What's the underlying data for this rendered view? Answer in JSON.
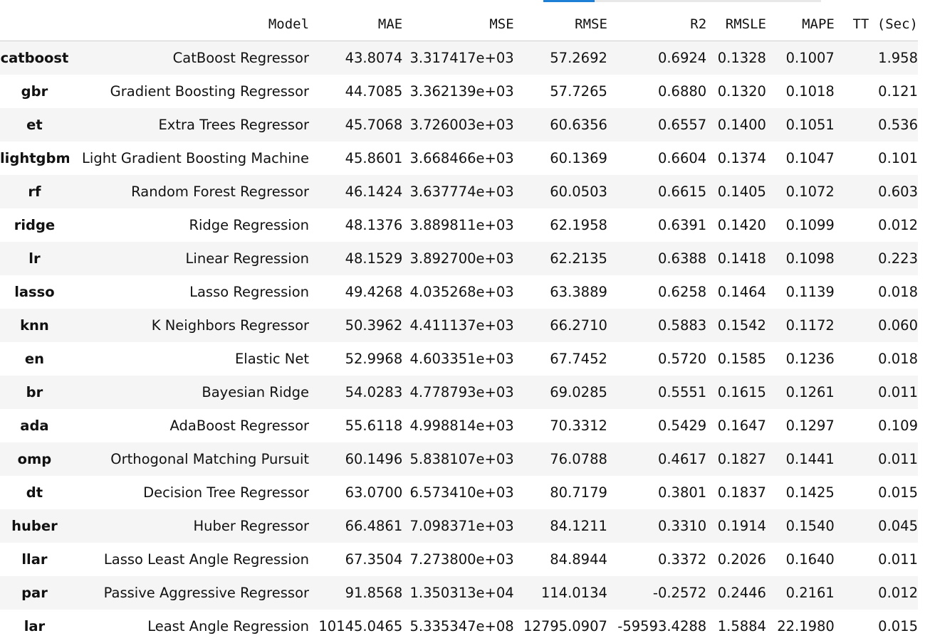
{
  "columns": [
    "",
    "Model",
    "MAE",
    "MSE",
    "RMSE",
    "R2",
    "RMSLE",
    "MAPE",
    "TT (Sec)"
  ],
  "rows": [
    {
      "id": "catboost",
      "model": "CatBoost Regressor",
      "mae": "43.8074",
      "mse": "3.317417e+03",
      "rmse": "57.2692",
      "r2": "0.6924",
      "rmsle": "0.1328",
      "mape": "0.1007",
      "tt": "1.958"
    },
    {
      "id": "gbr",
      "model": "Gradient Boosting Regressor",
      "mae": "44.7085",
      "mse": "3.362139e+03",
      "rmse": "57.7265",
      "r2": "0.6880",
      "rmsle": "0.1320",
      "mape": "0.1018",
      "tt": "0.121"
    },
    {
      "id": "et",
      "model": "Extra Trees Regressor",
      "mae": "45.7068",
      "mse": "3.726003e+03",
      "rmse": "60.6356",
      "r2": "0.6557",
      "rmsle": "0.1400",
      "mape": "0.1051",
      "tt": "0.536"
    },
    {
      "id": "lightgbm",
      "model": "Light Gradient Boosting Machine",
      "mae": "45.8601",
      "mse": "3.668466e+03",
      "rmse": "60.1369",
      "r2": "0.6604",
      "rmsle": "0.1374",
      "mape": "0.1047",
      "tt": "0.101"
    },
    {
      "id": "rf",
      "model": "Random Forest Regressor",
      "mae": "46.1424",
      "mse": "3.637774e+03",
      "rmse": "60.0503",
      "r2": "0.6615",
      "rmsle": "0.1405",
      "mape": "0.1072",
      "tt": "0.603"
    },
    {
      "id": "ridge",
      "model": "Ridge Regression",
      "mae": "48.1376",
      "mse": "3.889811e+03",
      "rmse": "62.1958",
      "r2": "0.6391",
      "rmsle": "0.1420",
      "mape": "0.1099",
      "tt": "0.012"
    },
    {
      "id": "lr",
      "model": "Linear Regression",
      "mae": "48.1529",
      "mse": "3.892700e+03",
      "rmse": "62.2135",
      "r2": "0.6388",
      "rmsle": "0.1418",
      "mape": "0.1098",
      "tt": "0.223"
    },
    {
      "id": "lasso",
      "model": "Lasso Regression",
      "mae": "49.4268",
      "mse": "4.035268e+03",
      "rmse": "63.3889",
      "r2": "0.6258",
      "rmsle": "0.1464",
      "mape": "0.1139",
      "tt": "0.018"
    },
    {
      "id": "knn",
      "model": "K Neighbors Regressor",
      "mae": "50.3962",
      "mse": "4.411137e+03",
      "rmse": "66.2710",
      "r2": "0.5883",
      "rmsle": "0.1542",
      "mape": "0.1172",
      "tt": "0.060"
    },
    {
      "id": "en",
      "model": "Elastic Net",
      "mae": "52.9968",
      "mse": "4.603351e+03",
      "rmse": "67.7452",
      "r2": "0.5720",
      "rmsle": "0.1585",
      "mape": "0.1236",
      "tt": "0.018"
    },
    {
      "id": "br",
      "model": "Bayesian Ridge",
      "mae": "54.0283",
      "mse": "4.778793e+03",
      "rmse": "69.0285",
      "r2": "0.5551",
      "rmsle": "0.1615",
      "mape": "0.1261",
      "tt": "0.011"
    },
    {
      "id": "ada",
      "model": "AdaBoost Regressor",
      "mae": "55.6118",
      "mse": "4.998814e+03",
      "rmse": "70.3312",
      "r2": "0.5429",
      "rmsle": "0.1647",
      "mape": "0.1297",
      "tt": "0.109"
    },
    {
      "id": "omp",
      "model": "Orthogonal Matching Pursuit",
      "mae": "60.1496",
      "mse": "5.838107e+03",
      "rmse": "76.0788",
      "r2": "0.4617",
      "rmsle": "0.1827",
      "mape": "0.1441",
      "tt": "0.011"
    },
    {
      "id": "dt",
      "model": "Decision Tree Regressor",
      "mae": "63.0700",
      "mse": "6.573410e+03",
      "rmse": "80.7179",
      "r2": "0.3801",
      "rmsle": "0.1837",
      "mape": "0.1425",
      "tt": "0.015"
    },
    {
      "id": "huber",
      "model": "Huber Regressor",
      "mae": "66.4861",
      "mse": "7.098371e+03",
      "rmse": "84.1211",
      "r2": "0.3310",
      "rmsle": "0.1914",
      "mape": "0.1540",
      "tt": "0.045"
    },
    {
      "id": "llar",
      "model": "Lasso Least Angle Regression",
      "mae": "67.3504",
      "mse": "7.273800e+03",
      "rmse": "84.8944",
      "r2": "0.3372",
      "rmsle": "0.2026",
      "mape": "0.1640",
      "tt": "0.011"
    },
    {
      "id": "par",
      "model": "Passive Aggressive Regressor",
      "mae": "91.8568",
      "mse": "1.350313e+04",
      "rmse": "114.0134",
      "r2": "-0.2572",
      "rmsle": "0.2446",
      "mape": "0.2161",
      "tt": "0.012"
    },
    {
      "id": "lar",
      "model": "Least Angle Regression",
      "mae": "10145.0465",
      "mse": "5.335347e+08",
      "rmse": "12795.0907",
      "r2": "-59593.4288",
      "rmsle": "1.5884",
      "mape": "22.1980",
      "tt": "0.015"
    }
  ]
}
